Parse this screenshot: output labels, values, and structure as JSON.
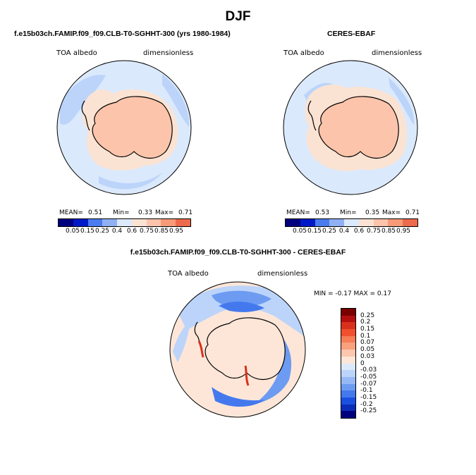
{
  "title": "DJF",
  "panels": [
    {
      "title": "f.e15b03ch.FAMIP.f09_f09.CLB-T0-SGHHT-300 (yrs 1980-1984)",
      "variable": "TOA albedo",
      "units": "dimensionless",
      "mean_label": "MEAN=",
      "mean": "0.51",
      "min_label": "Min=",
      "min": "0.33",
      "max_label": "Max=",
      "max": "0.71"
    },
    {
      "title": "CERES-EBAF",
      "variable": "TOA albedo",
      "units": "dimensionless",
      "mean_label": "MEAN=",
      "mean": "0.53",
      "min_label": "Min=",
      "min": "0.35",
      "max_label": "Max=",
      "max": "0.71"
    },
    {
      "title": "f.e15b03ch.FAMIP.f09_f09.CLB-T0-SGHHT-300 - CERES-EBAF",
      "variable": "TOA albedo",
      "units": "dimensionless",
      "minmax_text": "MIN =  -0.17 MAX =   0.17"
    }
  ],
  "chart_data": [
    {
      "type": "heatmap",
      "projection": "south-polar-stereographic",
      "title": "f.e15b03ch.FAMIP.f09_f09.CLB-T0-SGHHT-300 (yrs 1980-1984)",
      "variable": "TOA albedo",
      "units": "dimensionless",
      "mean": 0.51,
      "min": 0.33,
      "max": 0.71,
      "colorbar_levels": [
        "0.05",
        "0.15",
        "0.25",
        "0.4",
        "0.6",
        "0.75",
        "0.85",
        "0.95"
      ],
      "colorbar_colors": [
        "#00007f",
        "#0019c8",
        "#1a4be6",
        "#4a7cf0",
        "#8fb1f4",
        "#bcd4fa",
        "#dbe9fc",
        "#fbe3d3",
        "#fcc4ab",
        "#f69a78",
        "#ee6a4c",
        "#d8301d",
        "#a80e0e",
        "#7a0000"
      ],
      "legend_placement": "bottom"
    },
    {
      "type": "heatmap",
      "projection": "south-polar-stereographic",
      "title": "CERES-EBAF",
      "variable": "TOA albedo",
      "units": "dimensionless",
      "mean": 0.53,
      "min": 0.35,
      "max": 0.71,
      "colorbar_levels": [
        "0.05",
        "0.15",
        "0.25",
        "0.4",
        "0.6",
        "0.75",
        "0.85",
        "0.95"
      ],
      "legend_placement": "bottom"
    },
    {
      "type": "heatmap",
      "projection": "south-polar-stereographic",
      "title": "f.e15b03ch.FAMIP.f09_f09.CLB-T0-SGHHT-300 - CERES-EBAF",
      "variable": "TOA albedo",
      "units": "dimensionless",
      "min": -0.17,
      "max": 0.17,
      "colorbar_levels": [
        "0.25",
        "0.2",
        "0.15",
        "0.1",
        "0.07",
        "0.05",
        "0.03",
        "0",
        "-0.03",
        "-0.05",
        "-0.07",
        "-0.1",
        "-0.15",
        "-0.2",
        "-0.25"
      ],
      "colorbar_colors": [
        "#7a0000",
        "#b40f0f",
        "#d8301d",
        "#f0502d",
        "#f67d55",
        "#f9a07c",
        "#fcc7ae",
        "#fde6d8",
        "#dce9fb",
        "#bcd4fa",
        "#96b9f5",
        "#6d9bf2",
        "#4479ee",
        "#1b4fe0",
        "#0a2db8",
        "#00007f"
      ],
      "legend_placement": "right"
    }
  ]
}
